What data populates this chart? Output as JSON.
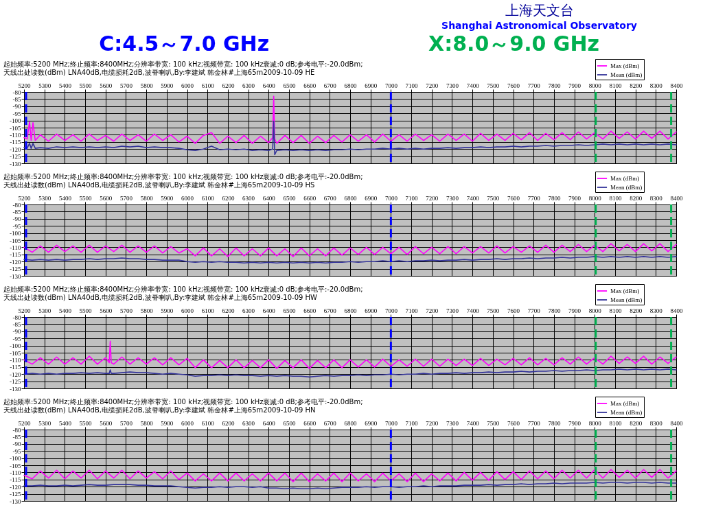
{
  "chart_data": [
    {
      "type": "other",
      "annotations": [
        "上海天文台",
        "Shanghai Astronomical Observatory",
        "C:4.5～7.0 GHz",
        "X:8.0～9.0 GHz"
      ]
    },
    {
      "type": "line",
      "title": "起始频率:5200 MHz;终止频率:8400MHz;分辨率带宽: 100 kHz;视频带宽: 100 kHz衰减:0 dB;参考电平:-20.0dBm;天线出处读数(dBm) LNA40dB,电缆损耗2dB,波脊喇叭,By:李建斌 韩金林#上海65m2009-10-09 HE",
      "x": [
        5200,
        5215,
        5227,
        5235,
        5244,
        5255,
        5280,
        5320,
        5360,
        5400,
        5440,
        5480,
        5520,
        5560,
        5600,
        5640,
        5680,
        5720,
        5760,
        5800,
        5840,
        5880,
        5920,
        5960,
        6000,
        6040,
        6080,
        6120,
        6160,
        6200,
        6240,
        6280,
        6320,
        6360,
        6400,
        6420,
        6425,
        6430,
        6440,
        6480,
        6520,
        6560,
        6600,
        6640,
        6680,
        6720,
        6760,
        6800,
        6840,
        6880,
        6920,
        6960,
        7000,
        7040,
        7080,
        7120,
        7160,
        7200,
        7240,
        7280,
        7320,
        7360,
        7400,
        7440,
        7480,
        7520,
        7560,
        7600,
        7640,
        7680,
        7720,
        7760,
        7800,
        7840,
        7880,
        7920,
        7960,
        8000,
        8040,
        8080,
        8120,
        8160,
        8200,
        8240,
        8280,
        8320,
        8360,
        8400
      ],
      "series": [
        {
          "name": "Max (dBm)",
          "color": "#ff00ff",
          "values": [
            -112,
            -113,
            -101,
            -114,
            -101.5,
            -114,
            -110,
            -114.5,
            -109.5,
            -114,
            -110,
            -114.5,
            -109.5,
            -114,
            -110.5,
            -114.5,
            -109.5,
            -114,
            -110,
            -114.5,
            -109.5,
            -114,
            -110,
            -115,
            -111,
            -116,
            -110.5,
            -108.5,
            -116,
            -111,
            -115.5,
            -110.5,
            -116,
            -111,
            -115.5,
            -112,
            -83,
            -113,
            -116,
            -110.5,
            -115.5,
            -110.5,
            -116,
            -111,
            -115.5,
            -110.5,
            -115,
            -110,
            -114.5,
            -110,
            -115,
            -109.5,
            -114.5,
            -110,
            -114.5,
            -109.5,
            -114,
            -110,
            -114.5,
            -109.5,
            -114,
            -109.5,
            -114.5,
            -109,
            -114,
            -109.5,
            -114,
            -109,
            -113.5,
            -108.5,
            -114,
            -109,
            -113.5,
            -108.5,
            -113.5,
            -108,
            -113,
            -108.5,
            -113,
            -107.5,
            -112.5,
            -108,
            -113,
            -107.5,
            -112.5,
            -107.5,
            -113,
            -108
          ]
        },
        {
          "name": "Mean (dBm)",
          "color": "#333399",
          "values": [
            -119,
            -119.5,
            -116,
            -119.5,
            -116,
            -119.5,
            -119,
            -119.5,
            -118.5,
            -119,
            -118.5,
            -119,
            -118.5,
            -119,
            -118.5,
            -119,
            -118,
            -118.5,
            -118,
            -119,
            -118.5,
            -119,
            -119,
            -119.5,
            -120.5,
            -121,
            -120,
            -118,
            -120.5,
            -120,
            -120.5,
            -120,
            -121,
            -120.5,
            -121,
            -120,
            -100.5,
            -124,
            -121,
            -120.5,
            -121,
            -120.5,
            -121,
            -120.5,
            -121,
            -120.5,
            -120.5,
            -120,
            -120.5,
            -120,
            -120,
            -119.5,
            -120,
            -119.5,
            -120,
            -119.5,
            -120,
            -119.5,
            -119.5,
            -119,
            -119.5,
            -119,
            -119,
            -118.5,
            -119,
            -118.5,
            -118.5,
            -118,
            -118.5,
            -118,
            -118,
            -117.5,
            -118,
            -117.5,
            -117.5,
            -117,
            -117.5,
            -117,
            -116.5,
            -117,
            -116.5,
            -117,
            -116.5,
            -117,
            -116.5,
            -117,
            -116.5,
            -117
          ]
        }
      ],
      "xlim": [
        5200,
        8400
      ],
      "xticks": [
        5200,
        5300,
        5400,
        5500,
        5600,
        5700,
        5800,
        5900,
        6000,
        6100,
        6200,
        6300,
        6400,
        6500,
        6600,
        6700,
        6800,
        6900,
        7000,
        7100,
        7200,
        7300,
        7400,
        7500,
        7600,
        7700,
        7800,
        7900,
        8000,
        8100,
        8200,
        8300,
        8400
      ],
      "ylim": [
        -130,
        -80
      ],
      "yticks": [
        -130,
        -125,
        -120,
        -115,
        -110,
        -105,
        -100,
        -95,
        -90,
        -85,
        -80
      ],
      "grid": true,
      "legend": "top right",
      "ref_lines": [
        {
          "axis": "x",
          "value": 5210,
          "color": "#0000ff",
          "line_style": "dashed"
        },
        {
          "axis": "x",
          "value": 7000,
          "color": "#0000ff",
          "line_style": "dashed"
        },
        {
          "axis": "x",
          "value": 8005,
          "color": "#00b050",
          "line_style": "dashed"
        },
        {
          "axis": "x",
          "value": 8375,
          "color": "#00b050",
          "line_style": "dashed"
        }
      ]
    },
    {
      "type": "line",
      "title": "起始频率:5200 MHz;终止频率:8400MHz;分辨率带宽: 100 kHz;视频带宽: 100 kHz衰减:0 dB;参考电平:-20.0dBm;天线出处读数(dBm) LNA40dB,电缆损耗2dB,波脊喇叭,By:李建斌 韩金林#上海65m2009-10-09 HS",
      "x": [
        5200,
        5240,
        5280,
        5320,
        5360,
        5400,
        5440,
        5480,
        5520,
        5560,
        5600,
        5640,
        5680,
        5720,
        5760,
        5800,
        5840,
        5880,
        5920,
        5960,
        6000,
        6040,
        6080,
        6120,
        6160,
        6200,
        6240,
        6280,
        6320,
        6360,
        6400,
        6440,
        6480,
        6520,
        6560,
        6600,
        6640,
        6680,
        6720,
        6760,
        6800,
        6840,
        6880,
        6920,
        6960,
        7000,
        7040,
        7080,
        7120,
        7160,
        7200,
        7240,
        7280,
        7320,
        7360,
        7400,
        7440,
        7480,
        7520,
        7560,
        7600,
        7640,
        7680,
        7720,
        7760,
        7800,
        7840,
        7880,
        7920,
        7960,
        8000,
        8040,
        8080,
        8120,
        8160,
        8200,
        8240,
        8280,
        8320,
        8360,
        8400
      ],
      "series": [
        {
          "name": "Max (dBm)",
          "color": "#ff00ff",
          "values": [
            -110,
            -113.5,
            -109,
            -113.5,
            -108.5,
            -113,
            -109,
            -113.5,
            -108.5,
            -113.5,
            -109,
            -113,
            -108.5,
            -113.5,
            -109,
            -113.5,
            -109,
            -114,
            -109.5,
            -114,
            -111,
            -116,
            -110.5,
            -116,
            -111,
            -116.5,
            -110.5,
            -116,
            -111,
            -116,
            -110.5,
            -116,
            -111,
            -116.5,
            -110.5,
            -116,
            -111,
            -116,
            -110.5,
            -115.5,
            -110.5,
            -115,
            -110,
            -115,
            -110,
            -114.5,
            -110,
            -115,
            -109.5,
            -114.5,
            -110,
            -114.5,
            -109.5,
            -114.5,
            -109.5,
            -114,
            -109.5,
            -114,
            -109,
            -114,
            -109.5,
            -113.5,
            -109,
            -113.5,
            -108.5,
            -113.5,
            -108.5,
            -113,
            -108,
            -113,
            -108.5,
            -113,
            -107.5,
            -112.5,
            -108,
            -113,
            -107.5,
            -112.5,
            -107.5,
            -113,
            -108
          ]
        },
        {
          "name": "Mean (dBm)",
          "color": "#333399",
          "values": [
            -118.5,
            -119,
            -118.5,
            -119,
            -118.5,
            -119,
            -118.5,
            -118.5,
            -118,
            -118.5,
            -118,
            -118,
            -117.5,
            -118,
            -118,
            -118.5,
            -118.5,
            -119,
            -119,
            -119,
            -120,
            -120.5,
            -120,
            -120.5,
            -120,
            -120.5,
            -120.5,
            -121,
            -120.5,
            -121,
            -120.5,
            -121,
            -120.5,
            -121,
            -120.5,
            -121,
            -120.5,
            -121,
            -120.5,
            -120.5,
            -120,
            -120.5,
            -120,
            -120,
            -119.5,
            -120,
            -119.5,
            -120,
            -119.5,
            -119.5,
            -119,
            -119.5,
            -119,
            -119,
            -118.5,
            -119,
            -118.5,
            -118.5,
            -118,
            -118.5,
            -118,
            -118,
            -117.5,
            -118,
            -117.5,
            -117.5,
            -117,
            -117.5,
            -117,
            -117,
            -116.5,
            -117,
            -116.5,
            -117,
            -116.5,
            -117,
            -116.5,
            -117,
            -116.5,
            -117,
            -116.5
          ]
        }
      ],
      "xlim": [
        5200,
        8400
      ],
      "xticks": [
        5200,
        5300,
        5400,
        5500,
        5600,
        5700,
        5800,
        5900,
        6000,
        6100,
        6200,
        6300,
        6400,
        6500,
        6600,
        6700,
        6800,
        6900,
        7000,
        7100,
        7200,
        7300,
        7400,
        7500,
        7600,
        7700,
        7800,
        7900,
        8000,
        8100,
        8200,
        8300,
        8400
      ],
      "ylim": [
        -130,
        -80
      ],
      "yticks": [
        -130,
        -125,
        -120,
        -115,
        -110,
        -105,
        -100,
        -95,
        -90,
        -85,
        -80
      ],
      "grid": true,
      "legend": "top right",
      "ref_lines": [
        {
          "axis": "x",
          "value": 5210,
          "color": "#0000ff",
          "line_style": "dashed"
        },
        {
          "axis": "x",
          "value": 7000,
          "color": "#0000ff",
          "line_style": "dashed"
        },
        {
          "axis": "x",
          "value": 8005,
          "color": "#00b050",
          "line_style": "dashed"
        },
        {
          "axis": "x",
          "value": 8375,
          "color": "#00b050",
          "line_style": "dashed"
        }
      ]
    },
    {
      "type": "line",
      "title": "起始频率:5200 MHz;终止频率:8400MHz;分辨率带宽: 100 kHz;视频带宽: 100 kHz衰减:0 dB;参考电平:-20.0dBm;天线出处读数(dBm) LNA40dB,电缆损耗2dB,波脊喇叭,By:李建斌 韩金林#上海65m2009-10-09 HW",
      "x": [
        5200,
        5240,
        5280,
        5320,
        5360,
        5400,
        5440,
        5480,
        5520,
        5560,
        5600,
        5618,
        5623,
        5628,
        5640,
        5680,
        5720,
        5760,
        5800,
        5840,
        5880,
        5920,
        5960,
        6000,
        6040,
        6080,
        6120,
        6160,
        6200,
        6240,
        6280,
        6320,
        6360,
        6400,
        6440,
        6480,
        6520,
        6560,
        6600,
        6640,
        6680,
        6720,
        6760,
        6800,
        6840,
        6880,
        6920,
        6960,
        7000,
        7040,
        7080,
        7120,
        7160,
        7200,
        7240,
        7280,
        7320,
        7360,
        7400,
        7440,
        7480,
        7520,
        7560,
        7600,
        7640,
        7680,
        7720,
        7760,
        7800,
        7840,
        7880,
        7920,
        7960,
        8000,
        8040,
        8080,
        8120,
        8160,
        8200,
        8240,
        8280,
        8320,
        8360,
        8400
      ],
      "series": [
        {
          "name": "Max (dBm)",
          "color": "#ff00ff",
          "values": [
            -110,
            -113,
            -108.5,
            -113,
            -108,
            -113,
            -108.5,
            -113,
            -107.5,
            -113,
            -108.5,
            -112,
            -97,
            -112,
            -113,
            -108,
            -113,
            -108.5,
            -113,
            -108.5,
            -113.5,
            -108.5,
            -113.5,
            -109,
            -115.5,
            -110,
            -115.5,
            -110.5,
            -115.5,
            -110,
            -115.5,
            -110.5,
            -115.5,
            -110,
            -116,
            -110.5,
            -115.5,
            -110,
            -116,
            -110.5,
            -115.5,
            -110,
            -115.5,
            -110,
            -115,
            -110,
            -115,
            -109.5,
            -114.5,
            -110,
            -114.5,
            -109.5,
            -114.5,
            -109.5,
            -114.5,
            -109.5,
            -114,
            -109.5,
            -114,
            -109,
            -114,
            -109.5,
            -113.5,
            -109,
            -113.5,
            -108.5,
            -113.5,
            -109,
            -113.5,
            -108.5,
            -113,
            -108,
            -113,
            -108.5,
            -113,
            -107.5,
            -112.5,
            -108,
            -112.5,
            -107.5,
            -113,
            -108,
            -112.5,
            -108
          ]
        },
        {
          "name": "Mean (dBm)",
          "color": "#333399",
          "values": [
            -120,
            -119.5,
            -120,
            -119.5,
            -120,
            -119.5,
            -119.5,
            -119,
            -119.5,
            -119,
            -119.5,
            -119.5,
            -117,
            -119.5,
            -119.5,
            -119,
            -118.5,
            -119,
            -119,
            -119.5,
            -120,
            -119.5,
            -120,
            -120.5,
            -121.5,
            -121,
            -121,
            -120.5,
            -121,
            -120.5,
            -121,
            -121,
            -121.5,
            -121,
            -121.5,
            -121,
            -121.5,
            -121.5,
            -122,
            -121.5,
            -121,
            -121.5,
            -121,
            -121,
            -120.5,
            -121,
            -120.5,
            -120.5,
            -120,
            -120.5,
            -120,
            -120,
            -119.5,
            -120,
            -119.5,
            -119.5,
            -119,
            -119.5,
            -119,
            -119,
            -118.5,
            -119,
            -118.5,
            -118.5,
            -118,
            -118.5,
            -118,
            -118,
            -117.5,
            -118,
            -117.5,
            -117.5,
            -117,
            -117.5,
            -117,
            -117,
            -116.5,
            -117,
            -116.5,
            -117,
            -116.5,
            -117,
            -116.5,
            -117
          ]
        }
      ],
      "xlim": [
        5200,
        8400
      ],
      "xticks": [
        5200,
        5300,
        5400,
        5500,
        5600,
        5700,
        5800,
        5900,
        6000,
        6100,
        6200,
        6300,
        6400,
        6500,
        6600,
        6700,
        6800,
        6900,
        7000,
        7100,
        7200,
        7300,
        7400,
        7500,
        7600,
        7700,
        7800,
        7900,
        8000,
        8100,
        8200,
        8300,
        8400
      ],
      "ylim": [
        -130,
        -80
      ],
      "yticks": [
        -130,
        -125,
        -120,
        -115,
        -110,
        -105,
        -100,
        -95,
        -90,
        -85,
        -80
      ],
      "grid": true,
      "legend": "top right",
      "ref_lines": [
        {
          "axis": "x",
          "value": 5210,
          "color": "#0000ff",
          "line_style": "dashed"
        },
        {
          "axis": "x",
          "value": 7000,
          "color": "#0000ff",
          "line_style": "dashed"
        },
        {
          "axis": "x",
          "value": 8005,
          "color": "#00b050",
          "line_style": "dashed"
        },
        {
          "axis": "x",
          "value": 8375,
          "color": "#00b050",
          "line_style": "dashed"
        }
      ]
    },
    {
      "type": "line",
      "title": "起始频率:5200 MHz;终止频率:8400MHz;分辨率带宽: 100 kHz;视频带宽: 100 kHz衰减:0 dB;参考电平:-20.0dBm;天线出处读数(dBm) LNA40dB,电缆损耗2dB,波脊喇叭,By:李建斌 韩金林#上海65m2009-10-09 HN",
      "x": [
        5200,
        5240,
        5280,
        5320,
        5360,
        5400,
        5440,
        5480,
        5520,
        5560,
        5600,
        5640,
        5680,
        5720,
        5760,
        5800,
        5840,
        5880,
        5920,
        5960,
        6000,
        6040,
        6080,
        6120,
        6160,
        6200,
        6240,
        6280,
        6320,
        6360,
        6400,
        6440,
        6480,
        6520,
        6560,
        6600,
        6640,
        6680,
        6720,
        6760,
        6800,
        6840,
        6880,
        6920,
        6960,
        7000,
        7040,
        7080,
        7120,
        7160,
        7200,
        7240,
        7280,
        7320,
        7360,
        7400,
        7440,
        7480,
        7520,
        7560,
        7600,
        7640,
        7680,
        7720,
        7760,
        7800,
        7840,
        7880,
        7920,
        7960,
        8000,
        8040,
        8080,
        8120,
        8160,
        8200,
        8240,
        8280,
        8320,
        8360,
        8400
      ],
      "series": [
        {
          "name": "Max (dBm)",
          "color": "#ff00ff",
          "values": [
            -112,
            -114.5,
            -109,
            -114,
            -108.5,
            -114.5,
            -109,
            -114,
            -108.5,
            -114.5,
            -109,
            -114,
            -108.5,
            -114.5,
            -109,
            -114,
            -109.5,
            -114.5,
            -109,
            -115,
            -110.5,
            -116,
            -111,
            -116,
            -110.5,
            -116,
            -110.5,
            -116,
            -111,
            -116,
            -110.5,
            -116,
            -110.5,
            -116.5,
            -110.5,
            -116.5,
            -111,
            -116,
            -110.5,
            -116.5,
            -110.5,
            -116,
            -111,
            -116.5,
            -110.5,
            -116,
            -111,
            -116.5,
            -110.5,
            -116.5,
            -111,
            -116,
            -110.5,
            -116,
            -110,
            -115.5,
            -110,
            -115.5,
            -109.5,
            -115,
            -109.5,
            -115,
            -109,
            -114.5,
            -109,
            -114.5,
            -108.5,
            -114,
            -108.5,
            -114,
            -108,
            -114,
            -108,
            -113.5,
            -108.5,
            -114,
            -108,
            -113.5,
            -108,
            -114,
            -109
          ]
        },
        {
          "name": "Mean (dBm)",
          "color": "#333399",
          "values": [
            -119.5,
            -119.5,
            -119,
            -119.5,
            -119.5,
            -119,
            -119.5,
            -119,
            -118.5,
            -119,
            -119,
            -118.5,
            -118.5,
            -118.5,
            -119,
            -119,
            -119.5,
            -119.5,
            -119.5,
            -120,
            -120.5,
            -121,
            -120.5,
            -120.5,
            -120,
            -120.5,
            -120,
            -120,
            -120.5,
            -120,
            -121,
            -121,
            -121.5,
            -121,
            -121.5,
            -121.5,
            -121,
            -121.5,
            -121,
            -120.5,
            -120.5,
            -120.5,
            -120,
            -120.5,
            -120,
            -120,
            -120.5,
            -120,
            -120,
            -119.5,
            -120,
            -119.5,
            -119.5,
            -119.5,
            -119,
            -119,
            -119,
            -118.5,
            -119,
            -118.5,
            -118.5,
            -118,
            -118.5,
            -118,
            -118,
            -117.5,
            -118,
            -117.5,
            -117.5,
            -117.5,
            -117,
            -117.5,
            -117,
            -117,
            -117.5,
            -117,
            -117,
            -117.5,
            -117,
            -117.5,
            -117.5
          ]
        }
      ],
      "xlim": [
        5200,
        8400
      ],
      "xticks": [
        5200,
        5300,
        5400,
        5500,
        5600,
        5700,
        5800,
        5900,
        6000,
        6100,
        6200,
        6300,
        6400,
        6500,
        6600,
        6700,
        6800,
        6900,
        7000,
        7100,
        7200,
        7300,
        7400,
        7500,
        7600,
        7700,
        7800,
        7900,
        8000,
        8100,
        8200,
        8300,
        8400
      ],
      "ylim": [
        -130,
        -80
      ],
      "yticks": [
        -130,
        -125,
        -120,
        -115,
        -110,
        -105,
        -100,
        -95,
        -90,
        -85,
        -80
      ],
      "grid": true,
      "legend": "top right",
      "ref_lines": [
        {
          "axis": "x",
          "value": 5210,
          "color": "#0000ff",
          "line_style": "dashed"
        },
        {
          "axis": "x",
          "value": 7000,
          "color": "#0000ff",
          "line_style": "dashed"
        },
        {
          "axis": "x",
          "value": 8005,
          "color": "#00b050",
          "line_style": "dashed"
        },
        {
          "axis": "x",
          "value": 8375,
          "color": "#00b050",
          "line_style": "dashed"
        }
      ]
    }
  ]
}
